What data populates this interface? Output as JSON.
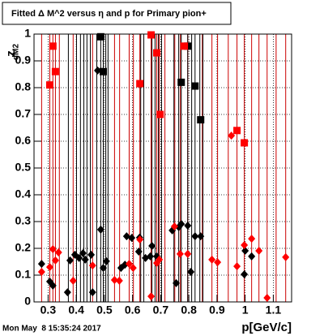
{
  "chart_data": {
    "type": "scatter",
    "title": "Fitted Δ M^2 versus η and p for Primary pion+",
    "xlabel": "p[GeV/c]",
    "ylabel": "z",
    "ylabel_sub": "dM2",
    "footer": "Mon May  8 15:35:24 2017",
    "xlim": [
      0.25,
      1.165
    ],
    "ylim": [
      0,
      1
    ],
    "xticks": [
      0.3,
      0.4,
      0.5,
      0.6,
      0.7,
      0.8,
      0.9,
      1,
      1.1
    ],
    "yticks": [
      0,
      0.1,
      0.2,
      0.3,
      0.4,
      0.5,
      0.6,
      0.7,
      0.8,
      0.9,
      1
    ],
    "grid": true,
    "vlines": [
      {
        "color": "#cc0000",
        "x": [
          0.277,
          0.306,
          0.317,
          0.326,
          0.34,
          0.389,
          0.458,
          0.536,
          0.554,
          0.588,
          0.603,
          0.626,
          0.666,
          0.686,
          0.695,
          0.715,
          0.75,
          0.77,
          0.796,
          0.848,
          0.882,
          0.902,
          0.94,
          0.971,
          0.997,
          1.023,
          1.049,
          1.078,
          1.11,
          1.144
        ]
      },
      {
        "color": "#000000",
        "x": [
          0.372,
          0.401,
          0.415,
          0.427,
          0.438,
          0.45,
          0.473,
          0.487,
          0.496,
          0.505,
          0.513,
          0.629,
          0.64,
          0.669,
          0.68,
          0.692,
          0.703,
          0.747,
          0.764,
          0.773,
          0.796,
          0.81,
          0.822,
          0.839,
          0.85
        ]
      }
    ],
    "series": [
      {
        "marker": "square",
        "color": "#000000",
        "x": [
          0.487,
          0.496,
          0.773,
          0.796,
          0.822,
          0.842
        ],
        "values": [
          0.99,
          0.86,
          0.82,
          0.955,
          0.806,
          0.68
        ]
      },
      {
        "marker": "square",
        "color": "#ff0000",
        "x": [
          0.317,
          0.306,
          0.326,
          0.626,
          0.666,
          0.686,
          0.698,
          0.784,
          0.971,
          0.997
        ],
        "values": [
          0.955,
          0.81,
          0.86,
          0.815,
          0.997,
          0.93,
          0.7,
          0.955,
          0.64,
          0.594
        ]
      },
      {
        "marker": "diamond",
        "color": "#000000",
        "x": [
          0.277,
          0.306,
          0.317,
          0.369,
          0.378,
          0.395,
          0.41,
          0.424,
          0.432,
          0.453,
          0.458,
          0.476,
          0.487,
          0.496,
          0.507,
          0.559,
          0.573,
          0.579,
          0.597,
          0.622,
          0.625,
          0.646,
          0.663,
          0.669,
          0.686,
          0.741,
          0.755,
          0.764,
          0.773,
          0.796,
          0.807,
          0.822,
          0.842,
          0.997,
          1.0,
          1.023
        ],
        "values": [
          0.142,
          0.076,
          0.061,
          0.036,
          0.155,
          0.176,
          0.164,
          0.182,
          0.158,
          0.176,
          0.036,
          0.864,
          0.27,
          0.127,
          0.152,
          0.127,
          0.139,
          0.245,
          0.239,
          0.188,
          0.24,
          0.164,
          0.17,
          0.209,
          0.17,
          0.267,
          0.07,
          0.279,
          0.291,
          0.285,
          0.112,
          0.245,
          0.245,
          0.103,
          0.191,
          0.17
        ]
      },
      {
        "marker": "diamond",
        "color": "#ff0000",
        "x": [
          0.277,
          0.306,
          0.317,
          0.326,
          0.337,
          0.389,
          0.458,
          0.536,
          0.553,
          0.588,
          0.602,
          0.626,
          0.666,
          0.686,
          0.695,
          0.749,
          0.769,
          0.796,
          0.882,
          0.902,
          0.951,
          0.971,
          0.997,
          1.023,
          1.049,
          1.078,
          1.144
        ],
        "values": [
          0.112,
          0.13,
          0.197,
          0.155,
          0.185,
          0.079,
          0.136,
          0.082,
          0.079,
          0.142,
          0.127,
          0.233,
          0.021,
          0.145,
          0.158,
          0.282,
          0.179,
          0.179,
          0.158,
          0.148,
          0.621,
          0.133,
          0.212,
          0.236,
          0.191,
          0.015,
          0.167
        ]
      }
    ]
  }
}
